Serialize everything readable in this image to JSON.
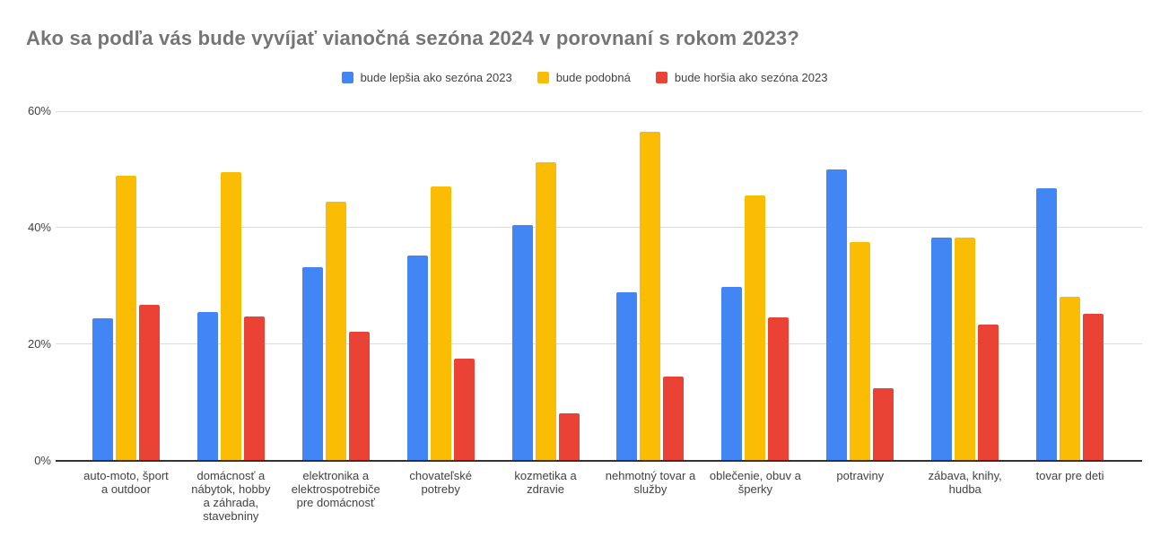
{
  "colors": {
    "background": "#ffffff",
    "title_text": "#757575",
    "label_text": "#424242",
    "gridline": "#dadce0",
    "axis_baseline": "#333333"
  },
  "chart_data": {
    "type": "bar",
    "title": "Ako sa podľa vás bude vyvíjať vianočná sezóna 2024 v porovnaní s rokom 2023?",
    "xlabel": "",
    "ylabel": "",
    "ylim": [
      0,
      60
    ],
    "yticks": [
      "0%",
      "20%",
      "40%",
      "60%"
    ],
    "grid": true,
    "legend_position": "top",
    "values_unit": "%",
    "categories": [
      "auto-moto, šport a outdoor",
      "domácnosť a nábytok, hobby a záhrada, stavebniny",
      "elektronika a elektrospotrebiče pre domácnosť",
      "chovateľské potreby",
      "kozmetika a zdravie",
      "nehmotný tovar a služby",
      "oblečenie, obuv a šperky",
      "potraviny",
      "zábava, knihy, hudba",
      "tovar pre deti"
    ],
    "categories_wrapped": [
      "auto-moto, šport\na outdoor",
      "domácnosť a\nnábytok, hobby\na záhrada,\nstavebniny",
      "elektronika a\nelektrospotrebiče\npre domácnosť",
      "chovateľské\npotreby",
      "kozmetika a\nzdravie",
      "nehmotný tovar a\nslužby",
      "oblečenie, obuv a\nšperky",
      "potraviny",
      "zábava, knihy,\nhudba",
      "tovar pre deti"
    ],
    "series": [
      {
        "name": "bude lepšia ako sezóna 2023",
        "color": "#4285F4",
        "values": [
          24.4,
          25.6,
          33.3,
          35.3,
          40.5,
          29.0,
          29.8,
          50.0,
          38.3,
          46.8
        ]
      },
      {
        "name": "bude podobná",
        "color": "#FBBC04",
        "values": [
          48.9,
          49.6,
          44.4,
          47.1,
          51.3,
          56.5,
          45.6,
          37.5,
          38.3,
          28.2
        ]
      },
      {
        "name": "bude horšia ako sezóna 2023",
        "color": "#EA4335",
        "values": [
          26.7,
          24.8,
          22.2,
          17.6,
          8.2,
          14.5,
          24.6,
          12.5,
          23.4,
          25.2
        ]
      }
    ]
  }
}
